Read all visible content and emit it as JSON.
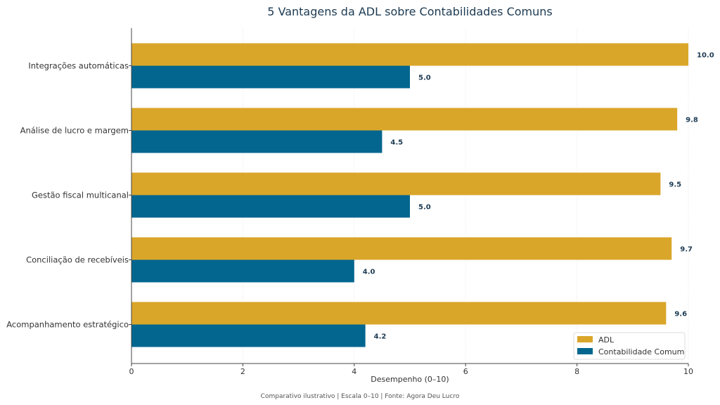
{
  "chart_data": {
    "type": "bar",
    "orientation": "horizontal",
    "title": "5 Vantagens da ADL sobre Contabilidades Comuns",
    "xlabel": "Desempenho (0–10)",
    "ylabel": "",
    "xlim": [
      0,
      10
    ],
    "xticks": [
      0,
      2,
      4,
      6,
      8,
      10
    ],
    "xtick_labels": [
      "0",
      "2",
      "4",
      "6",
      "8",
      "10"
    ],
    "grid": "vertical, light dotted",
    "categories": [
      "Integrações automáticas",
      "Análise de lucro e margem",
      "Gestão fiscal multicanal",
      "Conciliação de recebíveis",
      "Acompanhamento estratégico"
    ],
    "series": [
      {
        "name": "ADL",
        "color": "#DAA62A",
        "values": [
          10.0,
          9.8,
          9.5,
          9.7,
          9.6
        ],
        "labels": [
          "10.0",
          "9.8",
          "9.5",
          "9.7",
          "9.6"
        ]
      },
      {
        "name": "Contabilidade Comum",
        "color": "#02668F",
        "values": [
          5.0,
          4.5,
          5.0,
          4.0,
          4.2
        ],
        "labels": [
          "5.0",
          "4.5",
          "5.0",
          "4.0",
          "4.2"
        ]
      }
    ],
    "legend_position": "bottom-right",
    "footnote": "Comparativo ilustrativo | Escala 0–10 | Fonte: Agora Deu Lucro"
  }
}
